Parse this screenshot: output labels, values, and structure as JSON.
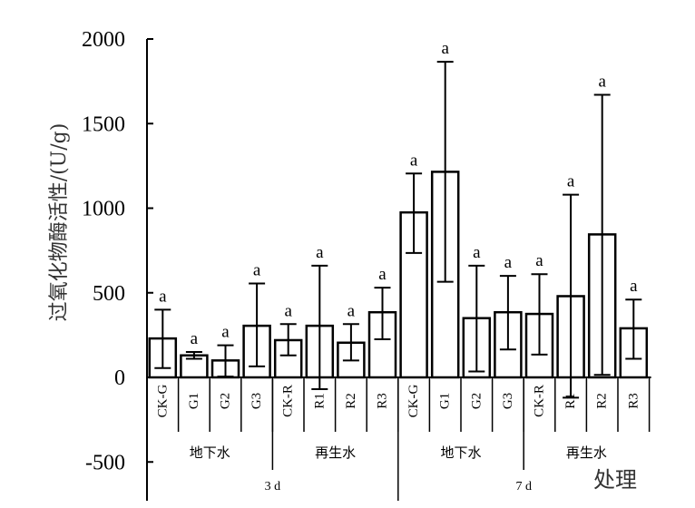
{
  "chart_data": {
    "type": "bar",
    "ylabel": "过氧化物酶活性/(U/g)",
    "xlabel": "处理",
    "ylim": [
      -500,
      2000
    ],
    "yticks": [
      -500,
      0,
      500,
      1000,
      1500,
      2000
    ],
    "categories": [
      "CK-G",
      "G1",
      "G2",
      "G3",
      "CK-R",
      "R1",
      "R2",
      "R3",
      "CK-G",
      "G1",
      "G2",
      "G3",
      "CK-R",
      "R1",
      "R2",
      "R3"
    ],
    "values": [
      230,
      130,
      100,
      305,
      220,
      305,
      205,
      385,
      975,
      1215,
      350,
      385,
      375,
      480,
      845,
      290
    ],
    "error_low": [
      55,
      110,
      5,
      65,
      130,
      -70,
      100,
      225,
      735,
      565,
      35,
      165,
      135,
      -120,
      15,
      110
    ],
    "error_high": [
      400,
      150,
      190,
      555,
      315,
      660,
      315,
      530,
      1205,
      1865,
      660,
      600,
      610,
      1080,
      1670,
      460
    ],
    "significance": [
      "a",
      "a",
      "a",
      "a",
      "a",
      "a",
      "a",
      "a",
      "a",
      "a",
      "a",
      "a",
      "a",
      "a",
      "a",
      "a"
    ],
    "water_groups": [
      "地下水",
      "再生水",
      "地下水",
      "再生水"
    ],
    "time_groups": [
      "3 d",
      "7 d"
    ],
    "grid": false,
    "legend": "none",
    "colors": {
      "bar_fill": "#ffffff",
      "bar_stroke": "#000000",
      "axis": "#000000"
    }
  }
}
